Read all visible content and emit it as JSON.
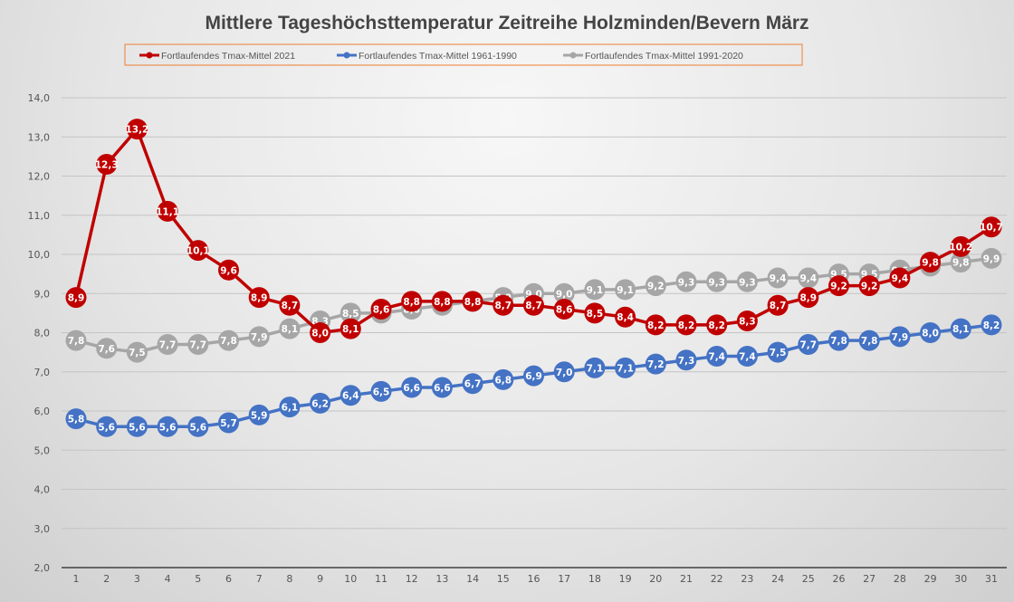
{
  "chart_data": {
    "type": "line",
    "title": "Mittlere Tageshöchsttemperatur Zeitreihe Holzminden/Bevern März",
    "xlabel": "",
    "ylabel": "",
    "x": [
      1,
      2,
      3,
      4,
      5,
      6,
      7,
      8,
      9,
      10,
      11,
      12,
      13,
      14,
      15,
      16,
      17,
      18,
      19,
      20,
      21,
      22,
      23,
      24,
      25,
      26,
      27,
      28,
      29,
      30,
      31
    ],
    "ylim": [
      2.0,
      14.0
    ],
    "y_ticks": [
      "2,0",
      "3,0",
      "4,0",
      "5,0",
      "6,0",
      "7,0",
      "8,0",
      "9,0",
      "10,0",
      "11,0",
      "12,0",
      "13,0",
      "14,0"
    ],
    "y_tick_values": [
      2,
      3,
      4,
      5,
      6,
      7,
      8,
      9,
      10,
      11,
      12,
      13,
      14
    ],
    "grid": true,
    "legend_position": "top",
    "decimal_separator": ",",
    "series": [
      {
        "name": "Fortlaufendes Tmax-Mittel 1991-2020",
        "color": "#a6a6a6",
        "values": [
          7.8,
          7.6,
          7.5,
          7.7,
          7.7,
          7.8,
          7.9,
          8.1,
          8.3,
          8.5,
          8.5,
          8.6,
          8.7,
          8.8,
          8.9,
          9.0,
          9.0,
          9.1,
          9.1,
          9.2,
          9.3,
          9.3,
          9.3,
          9.4,
          9.4,
          9.5,
          9.5,
          9.6,
          9.7,
          9.8,
          9.9
        ]
      },
      {
        "name": "Fortlaufendes Tmax-Mittel 1961-1990",
        "color": "#4472c4",
        "values": [
          5.8,
          5.6,
          5.6,
          5.6,
          5.6,
          5.7,
          5.9,
          6.1,
          6.2,
          6.4,
          6.5,
          6.6,
          6.6,
          6.7,
          6.8,
          6.9,
          7.0,
          7.1,
          7.1,
          7.2,
          7.3,
          7.4,
          7.4,
          7.5,
          7.7,
          7.8,
          7.8,
          7.9,
          8.0,
          8.1,
          8.2
        ]
      },
      {
        "name": "Fortlaufendes Tmax-Mittel 2021",
        "color": "#c00000",
        "values": [
          8.9,
          12.3,
          13.2,
          11.1,
          10.1,
          9.6,
          8.9,
          8.7,
          8.0,
          8.1,
          8.6,
          8.8,
          8.8,
          8.8,
          8.7,
          8.7,
          8.6,
          8.5,
          8.4,
          8.2,
          8.2,
          8.2,
          8.3,
          8.7,
          8.9,
          9.2,
          9.2,
          9.4,
          9.8,
          10.2,
          10.7
        ]
      }
    ],
    "legend_order": [
      {
        "name": "Fortlaufendes Tmax-Mittel 2021",
        "color": "#c00000"
      },
      {
        "name": "Fortlaufendes Tmax-Mittel 1961-1990",
        "color": "#4472c4"
      },
      {
        "name": "Fortlaufendes Tmax-Mittel 1991-2020",
        "color": "#a6a6a6"
      }
    ],
    "legend_border_color": "#ed7d31"
  }
}
